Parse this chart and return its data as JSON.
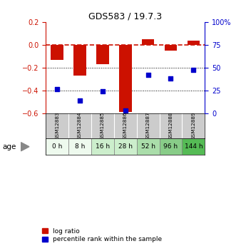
{
  "title": "GDS583 / 19.7.3",
  "categories": [
    "GSM12883",
    "GSM12884",
    "GSM12885",
    "GSM12886",
    "GSM12887",
    "GSM12888",
    "GSM12889"
  ],
  "age_labels": [
    "0 h",
    "8 h",
    "16 h",
    "28 h",
    "52 h",
    "96 h",
    "144 h"
  ],
  "log_ratio": [
    -0.13,
    -0.27,
    -0.17,
    -0.585,
    0.05,
    -0.05,
    0.04
  ],
  "percentile": [
    27,
    14,
    24,
    3,
    42,
    38,
    48
  ],
  "bar_color": "#cc1100",
  "dot_color": "#0000cc",
  "dashed_line_color": "#cc1100",
  "ylim_left": [
    -0.6,
    0.2
  ],
  "ylim_right": [
    0,
    100
  ],
  "yticks_left": [
    -0.6,
    -0.4,
    -0.2,
    0.0,
    0.2
  ],
  "yticks_right": [
    0,
    25,
    50,
    75,
    100
  ],
  "ytick_labels_right": [
    "0",
    "25",
    "50",
    "75",
    "100%"
  ],
  "dotted_lines": [
    -0.2,
    -0.4
  ],
  "age_colors": [
    "#eefaee",
    "#eefaee",
    "#cceecc",
    "#cceecc",
    "#aaddaa",
    "#88cc88",
    "#55bb55"
  ],
  "gsm_bg_color": "#cccccc",
  "fig_bg_color": "#ffffff",
  "bar_width": 0.55,
  "legend_labels": [
    "log ratio",
    "percentile rank within the sample"
  ]
}
